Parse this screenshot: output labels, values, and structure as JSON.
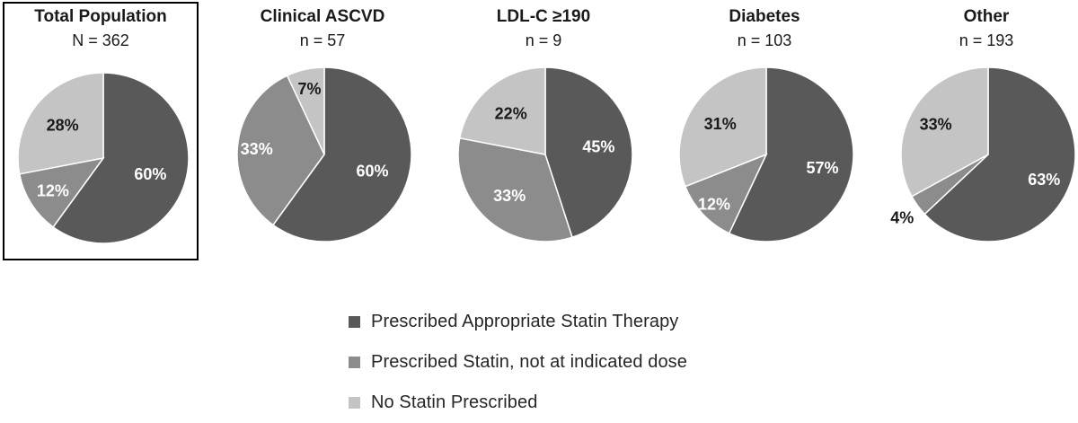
{
  "chart_data": [
    {
      "type": "pie",
      "title": "Total Population",
      "subtitle": "N = 362",
      "highlighted": true,
      "slices": [
        {
          "series": "Prescribed Appropriate Statin Therapy",
          "value": 60,
          "label": "60%"
        },
        {
          "series": "Prescribed Statin, not at indicated dose",
          "value": 12,
          "label": "12%"
        },
        {
          "series": "No Statin Prescribed",
          "value": 28,
          "label": "28%"
        }
      ]
    },
    {
      "type": "pie",
      "title": "Clinical ASCVD",
      "subtitle": "n = 57",
      "slices": [
        {
          "series": "Prescribed Appropriate Statin Therapy",
          "value": 60,
          "label": "60%"
        },
        {
          "series": "Prescribed Statin, not at indicated dose",
          "value": 33,
          "label": "33%"
        },
        {
          "series": "No Statin Prescribed",
          "value": 7,
          "label": "7%"
        }
      ]
    },
    {
      "type": "pie",
      "title": "LDL-C  ≥190",
      "subtitle": "n = 9",
      "slices": [
        {
          "series": "Prescribed Appropriate Statin Therapy",
          "value": 45,
          "label": "45%"
        },
        {
          "series": "Prescribed Statin, not at indicated dose",
          "value": 33,
          "label": "33%"
        },
        {
          "series": "No Statin Prescribed",
          "value": 22,
          "label": "22%"
        }
      ]
    },
    {
      "type": "pie",
      "title": "Diabetes",
      "subtitle": "n = 103",
      "slices": [
        {
          "series": "Prescribed Appropriate Statin Therapy",
          "value": 57,
          "label": "57%"
        },
        {
          "series": "Prescribed Statin, not at indicated dose",
          "value": 12,
          "label": "12%"
        },
        {
          "series": "No Statin Prescribed",
          "value": 31,
          "label": "31%"
        }
      ]
    },
    {
      "type": "pie",
      "title": "Other",
      "subtitle": "n = 193",
      "slices": [
        {
          "series": "Prescribed Appropriate Statin Therapy",
          "value": 63,
          "label": "63%"
        },
        {
          "series": "Prescribed Statin, not at indicated dose",
          "value": 4,
          "label": "4%"
        },
        {
          "series": "No Statin Prescribed",
          "value": 33,
          "label": "33%"
        }
      ]
    }
  ],
  "legend": {
    "placement": "bottom-center",
    "items": [
      {
        "label": "Prescribed Appropriate Statin Therapy",
        "color": "#595959"
      },
      {
        "label": "Prescribed Statin, not at indicated dose",
        "color": "#8c8c8c"
      },
      {
        "label": "No Statin Prescribed",
        "color": "#c4c4c4"
      }
    ]
  },
  "colors": {
    "Prescribed Appropriate Statin Therapy": "#595959",
    "Prescribed Statin, not at indicated dose": "#8c8c8c",
    "No Statin Prescribed": "#c4c4c4",
    "label_on_dark": "#ffffff",
    "label_on_light": "#1a1a1a"
  }
}
